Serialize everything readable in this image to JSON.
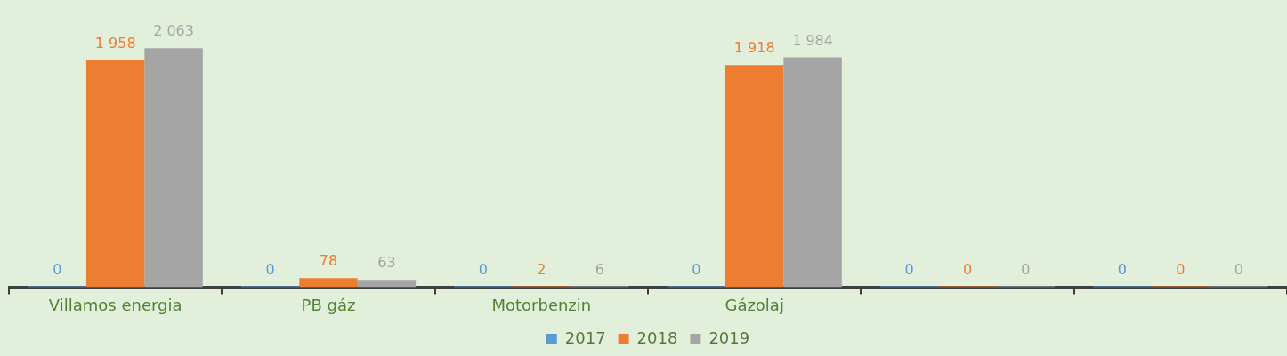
{
  "chart_data": {
    "type": "bar",
    "categories": [
      "Villamos energia",
      "PB gáz",
      "Motorbenzin",
      "Gázolaj",
      null,
      null
    ],
    "series": [
      {
        "name": "2017",
        "color": "#5b9bd5",
        "values": [
          0,
          0,
          0,
          0,
          0,
          0
        ],
        "value_labels": [
          "0",
          "0",
          "0",
          "0",
          "0",
          "0"
        ]
      },
      {
        "name": "2018",
        "color": "#ed7d31",
        "values": [
          1958,
          78,
          2,
          1918,
          0,
          0
        ],
        "value_labels": [
          "1 958",
          "78",
          "2",
          "1 918",
          "0",
          "0"
        ]
      },
      {
        "name": "2019",
        "color": "#a5a5a5",
        "values": [
          2063,
          63,
          6,
          1984,
          0,
          0
        ],
        "value_labels": [
          "2 063",
          "63",
          "6",
          "1 984",
          "0",
          "0"
        ]
      }
    ],
    "legend": "bottom",
    "grid": false
  }
}
